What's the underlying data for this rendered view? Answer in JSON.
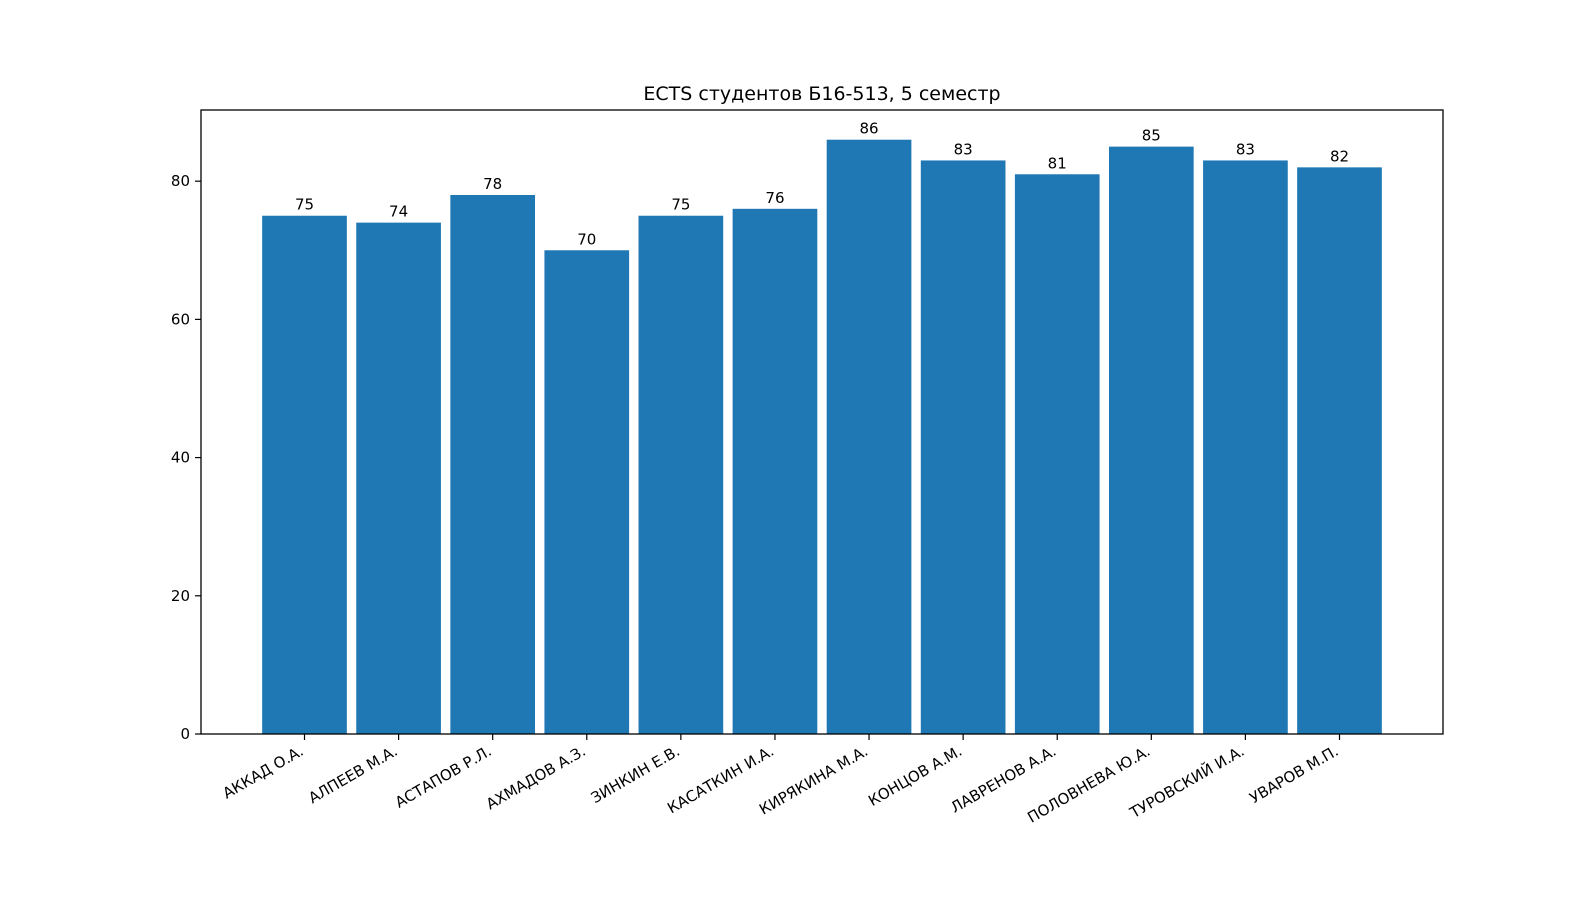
{
  "chart_data": {
    "type": "bar",
    "title": "ECTS студентов Б16-513, 5 семестр",
    "xlabel": "",
    "ylabel": "",
    "categories": [
      "АККАД О.А.",
      "АЛПЕЕВ М.А.",
      "АСТАПОВ Р.Л.",
      "АХМАДОВ А.З.",
      "ЗИНКИН Е.В.",
      "КАСАТКИН И.А.",
      "КИРЯКИНА М.А.",
      "КОНЦОВ А.М.",
      "ЛАВРЕНОВ А.А.",
      "ПОЛОВНЕВА Ю.А.",
      "ТУРОВСКИЙ И.А.",
      "УВАРОВ М.П."
    ],
    "values": [
      75,
      74,
      78,
      70,
      75,
      76,
      86,
      83,
      81,
      85,
      83,
      82
    ],
    "ylim": [
      0,
      90.3
    ],
    "yticks": [
      0,
      20,
      40,
      60,
      80
    ],
    "grid": false,
    "bar_color": "#1f77b4",
    "data_labels": true
  }
}
